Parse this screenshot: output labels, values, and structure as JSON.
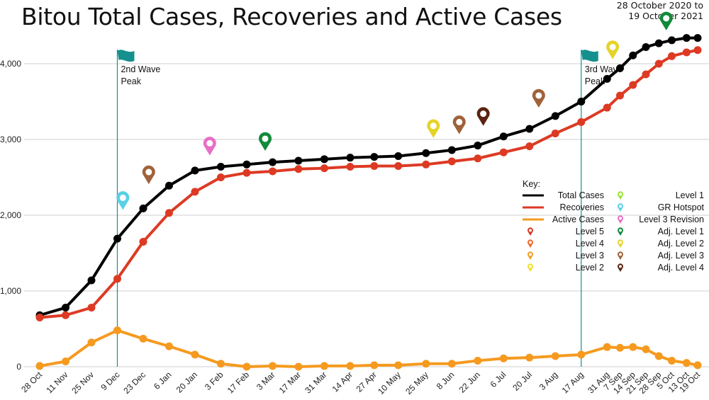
{
  "title": "Bitou Total Cases, Recoveries and Active Cases",
  "subtitle": [
    "28 October 2020 to",
    "19 October 2021"
  ],
  "chart_data": {
    "type": "line",
    "title": "Bitou Total Cases, Recoveries and Active Cases",
    "x": [
      "28 Oct",
      "11 Nov",
      "25 Nov",
      "9 Dec",
      "23 Dec",
      "6 Jan",
      "20 Jan",
      "3 Feb",
      "17 Feb",
      "3 Mar",
      "17 Mar",
      "31 Mar",
      "14 Apr",
      "27 Apr",
      "10 May",
      "25 May",
      "8 Jun",
      "22 Jun",
      "6 Jul",
      "20 Jul",
      "3 Aug",
      "17 Aug",
      "31 Aug",
      "7 Sep",
      "14 Sep",
      "21 Sep",
      "28 Sep",
      "5 Oct",
      "13 Oct",
      "19 Oct"
    ],
    "x_positions": [
      0,
      14,
      28,
      42,
      56,
      70,
      84,
      98,
      112,
      126,
      140,
      154,
      168,
      181,
      194,
      209,
      223,
      237,
      251,
      265,
      279,
      293,
      307,
      314,
      321,
      328,
      335,
      342,
      350,
      356
    ],
    "ylim": [
      0,
      4400
    ],
    "yticks": [
      "0",
      "1,000",
      "2,000",
      "3,000",
      "4,000"
    ],
    "ytick_values": [
      0,
      1000,
      2000,
      3000,
      4000
    ],
    "grid": true,
    "series": [
      {
        "name": "Total Cases",
        "color": "#000000",
        "values": [
          680,
          780,
          1140,
          1690,
          2090,
          2390,
          2590,
          2640,
          2670,
          2700,
          2720,
          2740,
          2760,
          2770,
          2780,
          2820,
          2860,
          2920,
          3040,
          3140,
          3310,
          3500,
          3800,
          3940,
          4110,
          4220,
          4270,
          4310,
          4340,
          4340
        ]
      },
      {
        "name": "Recoveries",
        "color": "#dd3a24",
        "values": [
          650,
          680,
          780,
          1160,
          1650,
          2030,
          2310,
          2500,
          2560,
          2580,
          2610,
          2620,
          2640,
          2650,
          2650,
          2670,
          2710,
          2750,
          2830,
          2910,
          3080,
          3230,
          3420,
          3580,
          3720,
          3860,
          4000,
          4100,
          4150,
          4180
        ]
      },
      {
        "name": "Active Cases",
        "color": "#f59a1f",
        "values": [
          10,
          70,
          320,
          480,
          370,
          270,
          160,
          40,
          0,
          10,
          0,
          10,
          10,
          20,
          20,
          40,
          40,
          80,
          110,
          120,
          140,
          160,
          260,
          250,
          260,
          230,
          140,
          80,
          50,
          20
        ]
      }
    ],
    "vlines": [
      {
        "x": 42,
        "label": [
          "2nd Wave",
          "Peak"
        ],
        "color": "#15908e"
      },
      {
        "x": 293,
        "label": [
          "3rd Wave",
          "Peak"
        ],
        "color": "#15908e"
      }
    ],
    "markers": [
      {
        "x": 45,
        "y": 2070,
        "level": "GR Hotspot",
        "color": "#5ad0e6"
      },
      {
        "x": 59,
        "y": 2410,
        "level": "Adj. Level 3",
        "color": "#a0623a"
      },
      {
        "x": 92,
        "y": 2790,
        "level": "Level 3 Revision",
        "color": "#e86ec5"
      },
      {
        "x": 122,
        "y": 2850,
        "level": "Adj. Level 1",
        "color": "#128a3a"
      },
      {
        "x": 213,
        "y": 3020,
        "level": "Adj. Level 2",
        "color": "#e6d32a"
      },
      {
        "x": 227,
        "y": 3070,
        "level": "Adj. Level 3",
        "color": "#a0623a"
      },
      {
        "x": 240,
        "y": 3180,
        "level": "Adj. Level 4",
        "color": "#5a2410"
      },
      {
        "x": 270,
        "y": 3420,
        "level": "Adj. Level 3",
        "color": "#a0623a"
      },
      {
        "x": 310,
        "y": 4060,
        "level": "Adj. Level 2",
        "color": "#e6d32a"
      },
      {
        "x": 339,
        "y": 4440,
        "level": "Adj. Level 1",
        "color": "#128a3a"
      }
    ],
    "legend": {
      "title": "Key:",
      "position": "right",
      "lines": [
        {
          "label": "Total Cases",
          "color": "#000000"
        },
        {
          "label": "Recoveries",
          "color": "#dd3a24"
        },
        {
          "label": "Active Cases",
          "color": "#f59a1f"
        }
      ],
      "pins_left": [
        {
          "label": "Level 5",
          "color": "#d93a25"
        },
        {
          "label": "Level 4",
          "color": "#ef6a2a"
        },
        {
          "label": "Level 3",
          "color": "#f0a024"
        },
        {
          "label": "Level 2",
          "color": "#f0df2d"
        }
      ],
      "pins_right": [
        {
          "label": "Level 1",
          "color": "#9be432"
        },
        {
          "label": "GR Hotspot",
          "color": "#5ad0e6"
        },
        {
          "label": "Level 3 Revision",
          "color": "#e86ec5"
        },
        {
          "label": "Adj. Level 1",
          "color": "#128a3a"
        },
        {
          "label": "Adj. Level 2",
          "color": "#e6d32a"
        },
        {
          "label": "Adj. Level 3",
          "color": "#a0623a"
        },
        {
          "label": "Adj. Level 4",
          "color": "#5a2410"
        }
      ]
    }
  }
}
